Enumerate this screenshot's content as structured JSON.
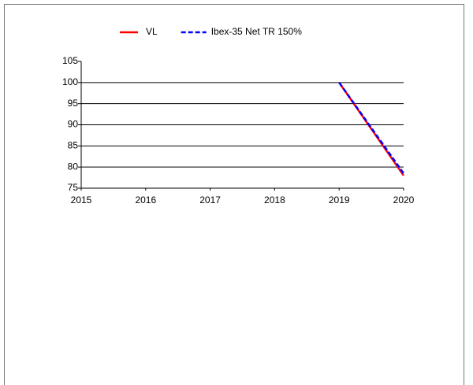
{
  "chart_data": {
    "type": "line",
    "x": [
      2019,
      2020
    ],
    "series": [
      {
        "name": "VL",
        "color": "#ff0000",
        "dash": false,
        "values": [
          100,
          78
        ]
      },
      {
        "name": "Ibex-35 Net TR 150%",
        "color": "#0000ff",
        "dash": true,
        "values": [
          100,
          78.5
        ]
      }
    ],
    "xlim": [
      2015,
      2020
    ],
    "xticks": [
      2015,
      2016,
      2017,
      2018,
      2019,
      2020
    ],
    "ylim": [
      75,
      105
    ],
    "yticks": [
      75,
      80,
      85,
      90,
      95,
      100,
      105
    ],
    "grid": true,
    "legend": "top"
  }
}
